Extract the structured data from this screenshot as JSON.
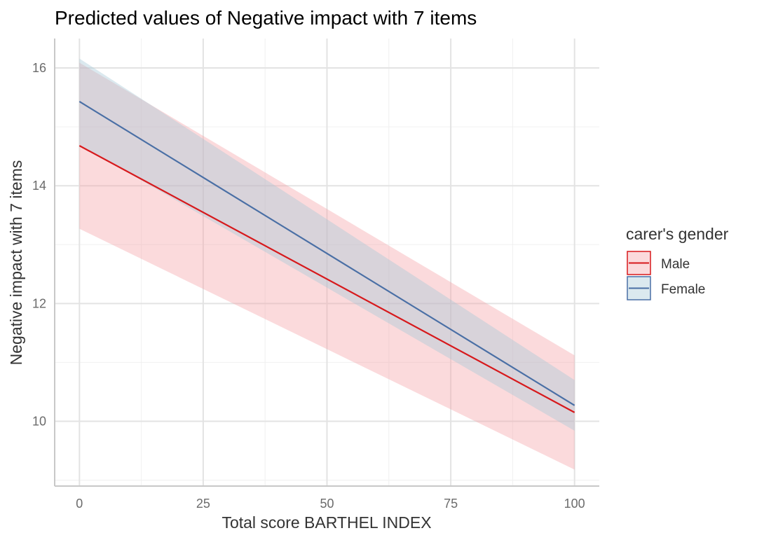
{
  "chart_data": {
    "type": "line",
    "title": "Predicted values of Negative impact with 7 items",
    "xlabel": "Total score BARTHEL INDEX",
    "ylabel": "Negative impact with 7 items",
    "xlim": [
      -5,
      105
    ],
    "ylim": [
      8.9,
      16.5
    ],
    "x_ticks": [
      0,
      25,
      50,
      75,
      100
    ],
    "x_tick_labels": [
      "0",
      "25",
      "50",
      "75",
      "100"
    ],
    "y_ticks": [
      10,
      12,
      14,
      16
    ],
    "y_tick_labels": [
      "10",
      "12",
      "14",
      "16"
    ],
    "grid": true,
    "legend": {
      "title": "carer's gender",
      "position": "right"
    },
    "series": [
      {
        "name": "Male",
        "color": "#d7191c",
        "ribbon_color": "#f4a3a8",
        "x": [
          0,
          100
        ],
        "y": [
          14.68,
          10.15
        ],
        "ci_lower": [
          13.27,
          9.18
        ],
        "ci_upper": [
          16.09,
          11.12
        ]
      },
      {
        "name": "Female",
        "color": "#4a6fa5",
        "ribbon_color": "#a6c8d8",
        "x": [
          0,
          100
        ],
        "y": [
          15.43,
          10.27
        ],
        "ci_lower": [
          14.7,
          9.84
        ],
        "ci_upper": [
          16.16,
          10.7
        ]
      }
    ]
  }
}
